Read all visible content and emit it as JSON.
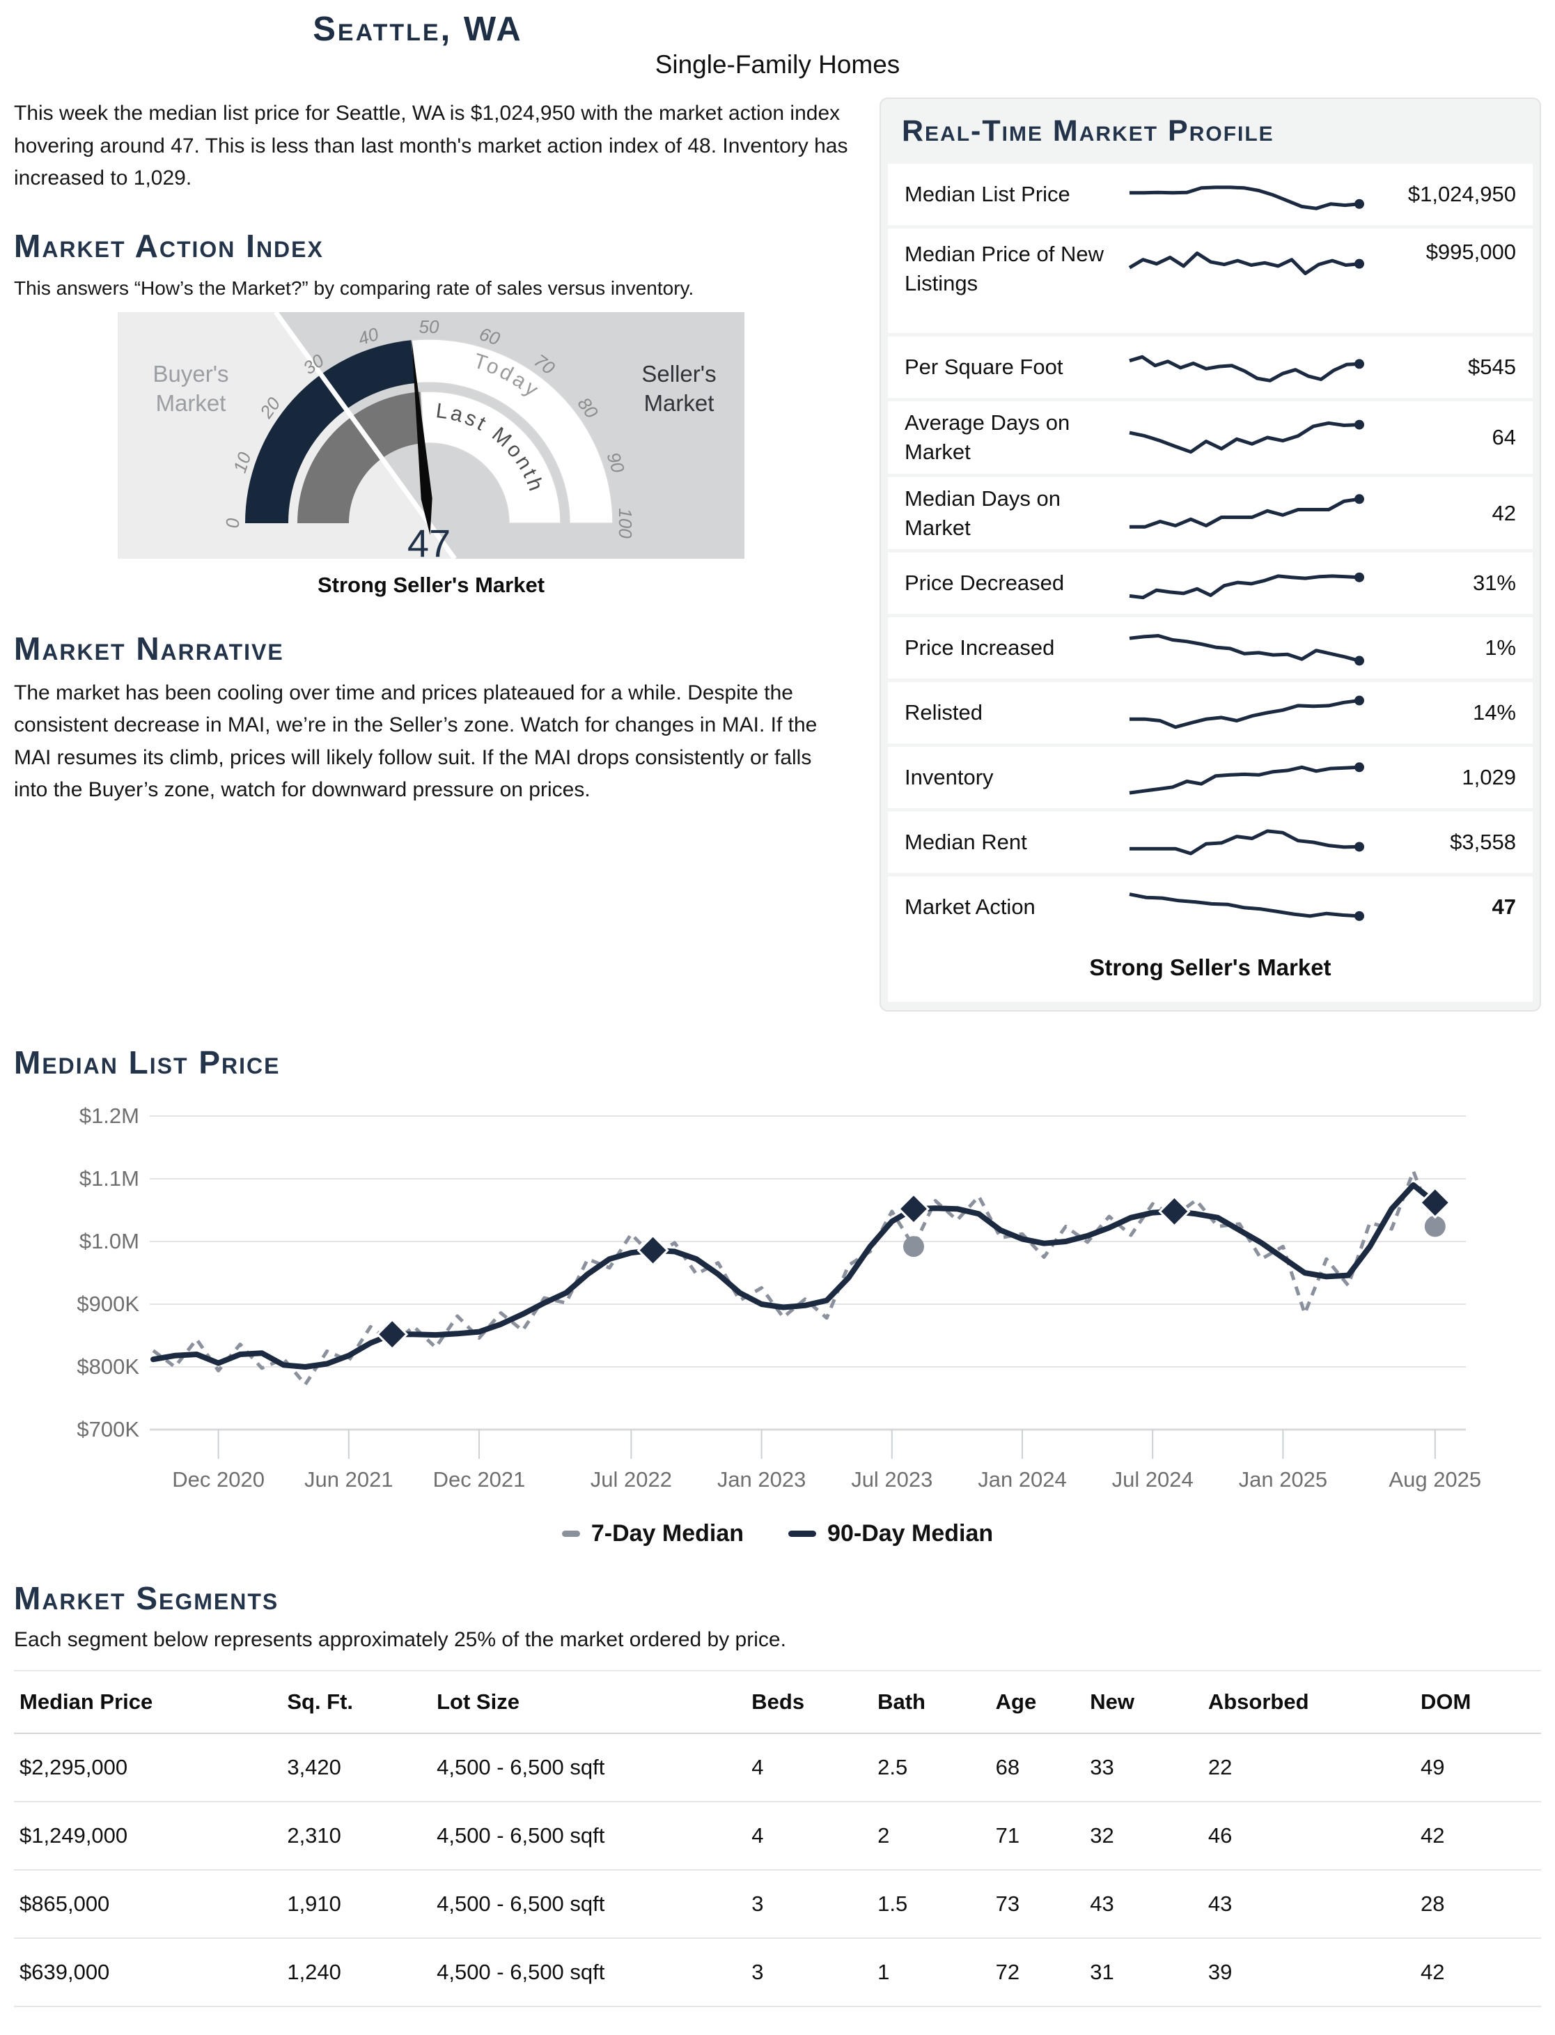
{
  "page": {
    "title": "Seattle, WA",
    "subtitle": "Single-Family Homes",
    "intro": "This week the median list price for Seattle, WA is $1,024,950 with the market action index hovering around 47. This is less than last month's market action index of 48. Inventory has increased to 1,029."
  },
  "market_action_index": {
    "heading": "Market Action Index",
    "description": "This answers “How’s the Market?” by comparing rate of sales versus inventory.",
    "caption": "Strong Seller's Market"
  },
  "market_narrative": {
    "heading": "Market Narrative",
    "text": "The market has been cooling over time and prices plateaued for a while. Despite the consistent decrease in MAI, we’re in the Seller’s zone. Watch for changes in MAI. If the MAI resumes its climb, prices will likely follow suit. If the MAI drops consistently or falls into the Buyer’s zone, watch for downward pressure on prices."
  },
  "profile": {
    "heading": "Real-Time Market Profile",
    "status": "Strong Seller's Market",
    "rows": [
      {
        "label": "Median List Price",
        "value": "$1,024,950",
        "bold": false,
        "spark": [
          55,
          55,
          56,
          55,
          56,
          70,
          72,
          72,
          70,
          62,
          48,
          30,
          12,
          6,
          20,
          16,
          20
        ]
      },
      {
        "label": "Median Price of New Listings",
        "value": "$995,000",
        "bold": false,
        "spark": [
          30,
          55,
          42,
          62,
          35,
          75,
          48,
          40,
          52,
          38,
          45,
          35,
          55,
          12,
          40,
          52,
          38,
          42
        ]
      },
      {
        "label": "Per Square Foot",
        "value": "$545",
        "bold": false,
        "spark": [
          70,
          82,
          55,
          68,
          48,
          62,
          45,
          52,
          55,
          38,
          15,
          8,
          30,
          42,
          22,
          12,
          40,
          58,
          60
        ]
      },
      {
        "label": "Average Days on Market",
        "value": "64",
        "bold": false,
        "spark": [
          65,
          55,
          40,
          22,
          5,
          38,
          15,
          45,
          30,
          50,
          40,
          55,
          85,
          95,
          88,
          90
        ]
      },
      {
        "label": "Median Days on Market",
        "value": "42",
        "bold": false,
        "spark": [
          8,
          8,
          25,
          12,
          32,
          12,
          38,
          38,
          38,
          58,
          45,
          62,
          62,
          62,
          88,
          95
        ]
      },
      {
        "label": "Price Decreased",
        "value": "31%",
        "bold": false,
        "spark": [
          10,
          5,
          28,
          22,
          18,
          32,
          12,
          42,
          52,
          48,
          58,
          72,
          68,
          65,
          70,
          72,
          70,
          68
        ]
      },
      {
        "label": "Price Increased",
        "value": "1%",
        "bold": false,
        "spark": [
          80,
          85,
          88,
          75,
          70,
          62,
          52,
          48,
          32,
          35,
          28,
          30,
          15,
          42,
          32,
          22,
          10
        ]
      },
      {
        "label": "Relisted",
        "value": "14%",
        "bold": false,
        "spark": [
          30,
          30,
          25,
          5,
          18,
          30,
          35,
          25,
          40,
          50,
          58,
          72,
          70,
          72,
          82,
          88
        ]
      },
      {
        "label": "Inventory",
        "value": "1,029",
        "bold": false,
        "spark": [
          2,
          8,
          14,
          20,
          38,
          30,
          55,
          58,
          60,
          58,
          68,
          72,
          82,
          70,
          78,
          80,
          82
        ]
      },
      {
        "label": "Median Rent",
        "value": "$3,558",
        "bold": false,
        "spark": [
          30,
          30,
          30,
          30,
          15,
          45,
          48,
          68,
          62,
          85,
          80,
          55,
          50,
          40,
          35,
          36
        ]
      },
      {
        "label": "Market Action",
        "value": "47",
        "bold": true,
        "spark": [
          90,
          80,
          78,
          70,
          66,
          60,
          58,
          48,
          44,
          36,
          28,
          22,
          30,
          25,
          22
        ]
      }
    ]
  },
  "price_chart_section": {
    "heading": "Median List Price"
  },
  "market_segments": {
    "heading": "Market Segments",
    "description": "Each segment below represents approximately 25% of the market ordered by price.",
    "columns": [
      "Median Price",
      "Sq. Ft.",
      "Lot Size",
      "Beds",
      "Bath",
      "Age",
      "New",
      "Absorbed",
      "DOM"
    ],
    "rows": [
      [
        "$2,295,000",
        "3,420",
        "4,500 - 6,500 sqft",
        "4",
        "2.5",
        "68",
        "33",
        "22",
        "49"
      ],
      [
        "$1,249,000",
        "2,310",
        "4,500 - 6,500 sqft",
        "4",
        "2",
        "71",
        "32",
        "46",
        "42"
      ],
      [
        "$865,000",
        "1,910",
        "4,500 - 6,500 sqft",
        "3",
        "1.5",
        "73",
        "43",
        "43",
        "28"
      ],
      [
        "$639,000",
        "1,240",
        "4,500 - 6,500 sqft",
        "3",
        "1",
        "72",
        "31",
        "39",
        "42"
      ]
    ]
  },
  "chart_data": [
    {
      "type": "gauge",
      "title": "Market Action Index",
      "min": 0,
      "max": 100,
      "tick_step": 10,
      "today": 47,
      "last_month": 48,
      "zone_boundary": 30,
      "value_label": "47",
      "status": "Strong Seller's Market",
      "zones": {
        "left": "Buyer's Market",
        "right": "Seller's Market"
      },
      "arc_labels": {
        "inner": "Last Month",
        "outer": "Today"
      }
    },
    {
      "type": "line",
      "title": "Median List Price",
      "x_start": "Sep 2020",
      "x_end": "Aug 2025",
      "x_unit": "month",
      "ylim_thousands": [
        700,
        1200
      ],
      "grid": true,
      "legend_position": "bottom",
      "y_ticks": [
        {
          "k": 1200,
          "label": "$1.2M"
        },
        {
          "k": 1100,
          "label": "$1.1M"
        },
        {
          "k": 1000,
          "label": "$1.0M"
        },
        {
          "k": 900,
          "label": "$900K"
        },
        {
          "k": 800,
          "label": "$800K"
        },
        {
          "k": 700,
          "label": "$700K"
        }
      ],
      "x_ticks": [
        {
          "i": 3,
          "label": "Dec 2020"
        },
        {
          "i": 9,
          "label": "Jun 2021"
        },
        {
          "i": 15,
          "label": "Dec 2021"
        },
        {
          "i": 22,
          "label": "Jul 2022"
        },
        {
          "i": 28,
          "label": "Jan 2023"
        },
        {
          "i": 34,
          "label": "Jul 2023"
        },
        {
          "i": 40,
          "label": "Jan 2024"
        },
        {
          "i": 46,
          "label": "Jul 2024"
        },
        {
          "i": 52,
          "label": "Jan 2025"
        },
        {
          "i": 59,
          "label": "Aug 2025"
        }
      ],
      "series": [
        {
          "name": "7-Day Median",
          "style": "dashed",
          "color": "#8b919c",
          "values_thousands": [
            826,
            800,
            844,
            794,
            836,
            798,
            813,
            772,
            825,
            810,
            864,
            838,
            864,
            831,
            881,
            846,
            886,
            858,
            910,
            902,
            972,
            958,
            1012,
            976,
            998,
            948,
            966,
            906,
            926,
            879,
            908,
            878,
            962,
            984,
            1048,
            992,
            1065,
            1034,
            1072,
            1006,
            1012,
            975,
            1024,
            999,
            1040,
            1010,
            1060,
            1040,
            1066,
            1024,
            1028,
            972,
            992,
            885,
            972,
            930,
            1030,
            1020,
            1112,
            1024
          ]
        },
        {
          "name": "90-Day Median",
          "style": "solid",
          "color": "#1b2a40",
          "values_thousands": [
            812,
            818,
            820,
            806,
            820,
            822,
            803,
            800,
            805,
            818,
            838,
            852,
            852,
            851,
            853,
            856,
            868,
            884,
            902,
            918,
            948,
            972,
            982,
            986,
            984,
            972,
            948,
            918,
            900,
            895,
            898,
            906,
            942,
            992,
            1032,
            1052,
            1053,
            1052,
            1044,
            1018,
            1004,
            997,
            1000,
            1009,
            1022,
            1038,
            1046,
            1048,
            1044,
            1038,
            1018,
            998,
            974,
            950,
            944,
            946,
            992,
            1052,
            1090,
            1062
          ]
        }
      ],
      "markers": {
        "diamond_series": "90-Day Median",
        "diamond_indices": [
          11,
          23,
          35,
          47,
          59
        ],
        "circle_series": "7-Day Median",
        "circle_indices": [
          35,
          59
        ]
      }
    }
  ],
  "colors": {
    "navy": "#1b2a40",
    "heading_navy": "#22334a",
    "gray_line": "#8b919c",
    "zone_light": "#ededee",
    "zone_dark": "#d4d5d6",
    "band_navy": "#17283d",
    "band_gray": "#757575",
    "arc_white": "#ffffff",
    "arc_edge": "#d9d9d9",
    "tick_text": "#8c8c8c",
    "axis_text": "#6f6f6f",
    "grid": "#e4e4e4",
    "needle": "#0a0a0a",
    "value_navy": "#1f3146",
    "buyer_label": "#9a9da1",
    "seller_label": "#303438"
  }
}
